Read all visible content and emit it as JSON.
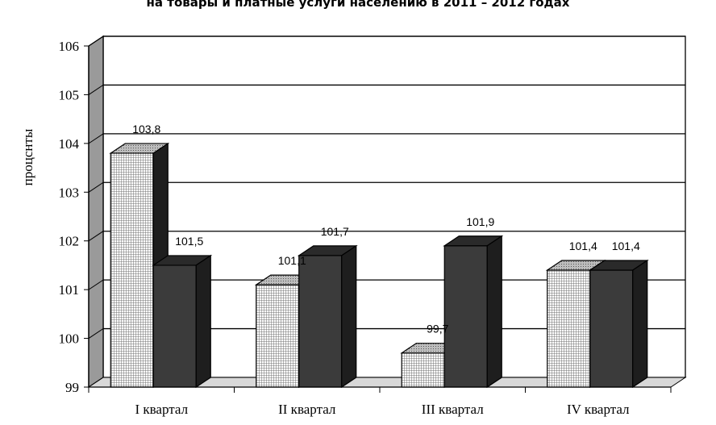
{
  "title": "на товары и платные услуги населению в 2011 – 2012 годах",
  "chart_data": {
    "type": "bar",
    "title": "на товары и платные услуги населению в 2011 – 2012 годах",
    "ylabel": "процснты",
    "xlabel": "",
    "ylim": [
      99,
      106
    ],
    "yticks": [
      99,
      100,
      101,
      102,
      103,
      104,
      105,
      106
    ],
    "categories": [
      "I квартал",
      "II квартал",
      "III квартал",
      "IV квартал"
    ],
    "series": [
      {
        "values": [
          103.8,
          101.1,
          99.7,
          101.4
        ],
        "labels": [
          "103,8",
          "101,1",
          "99,7",
          "101,4"
        ],
        "pattern": "grid",
        "color": "#dcdcdc"
      },
      {
        "values": [
          101.5,
          101.7,
          101.9,
          101.4
        ],
        "labels": [
          "101,5",
          "101,7",
          "101,9",
          "101,4"
        ],
        "pattern": "solid",
        "color": "#3a3a3a"
      }
    ],
    "grid": true,
    "style": "3d-bar"
  }
}
